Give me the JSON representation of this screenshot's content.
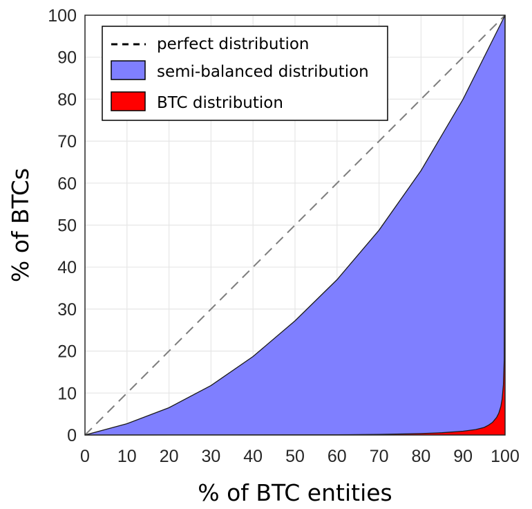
{
  "chart_data": {
    "type": "area",
    "xlabel": "% of BTC entities",
    "ylabel": "% of BTCs",
    "xlim": [
      0,
      100
    ],
    "ylim": [
      0,
      100
    ],
    "xticks": [
      0,
      10,
      20,
      30,
      40,
      50,
      60,
      70,
      80,
      90,
      100
    ],
    "yticks": [
      0,
      10,
      20,
      30,
      40,
      50,
      60,
      70,
      80,
      90,
      100
    ],
    "grid": true,
    "legend_position": "top-left",
    "series": [
      {
        "name": "perfect distribution",
        "kind": "dashed-line",
        "color": "#7f7f7f",
        "x": [
          0,
          100
        ],
        "y": [
          0,
          100
        ]
      },
      {
        "name": "semi-balanced distribution",
        "kind": "area",
        "color": "#7f7fff",
        "x": [
          0,
          10,
          20,
          30,
          40,
          50,
          60,
          70,
          80,
          90,
          100
        ],
        "y": [
          0,
          2.7,
          6.5,
          11.8,
          18.7,
          27.2,
          37.0,
          48.8,
          63.0,
          80.0,
          100
        ]
      },
      {
        "name": "BTC distribution",
        "kind": "area",
        "color": "#ff0000",
        "x": [
          0,
          60,
          70,
          80,
          85,
          90,
          93,
          95,
          96,
          97,
          98,
          98.5,
          99,
          99.3,
          99.6,
          99.8,
          100
        ],
        "y": [
          0,
          0.05,
          0.15,
          0.35,
          0.55,
          0.9,
          1.3,
          1.8,
          2.3,
          3.0,
          4.2,
          5.2,
          6.8,
          8.5,
          12.0,
          18.0,
          100
        ]
      }
    ]
  }
}
